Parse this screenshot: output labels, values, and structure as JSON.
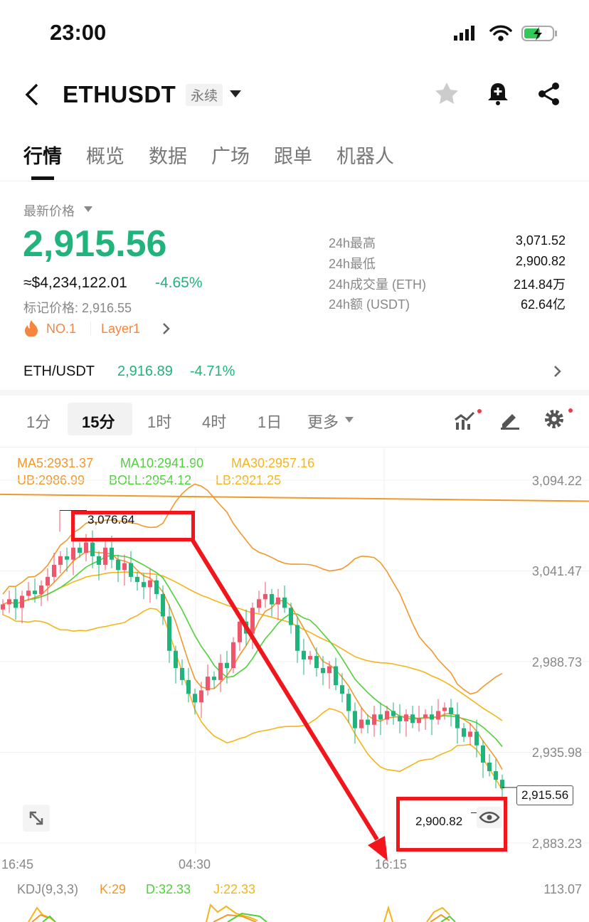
{
  "status_bar": {
    "time": "23:00"
  },
  "header": {
    "title": "ETHUSDT",
    "tag": "永续"
  },
  "tabs": [
    {
      "label": "行情",
      "active": true
    },
    {
      "label": "概览"
    },
    {
      "label": "数据"
    },
    {
      "label": "广场"
    },
    {
      "label": "跟单"
    },
    {
      "label": "机器人"
    }
  ],
  "price": {
    "label": "最新价格",
    "last": "2,915.56",
    "usd": "≈$4,234,122.01",
    "change": "-4.65%",
    "mark": "标记价格: 2,916.55",
    "rank": "NO.1",
    "sector": "Layer1"
  },
  "stats": [
    {
      "label": "24h最高",
      "value": "3,071.52"
    },
    {
      "label": "24h最低",
      "value": "2,900.82"
    },
    {
      "label": "24h成交量 (ETH)",
      "value": "214.84万"
    },
    {
      "label": "24h额 (USDT)",
      "value": "62.64亿"
    }
  ],
  "spot": {
    "pair": "ETH/USDT",
    "price": "2,916.89",
    "change": "-4.71%"
  },
  "intervals": [
    {
      "label": "1分"
    },
    {
      "label": "15分",
      "active": true
    },
    {
      "label": "1时"
    },
    {
      "label": "4时"
    },
    {
      "label": "1日"
    },
    {
      "label": "更多"
    }
  ],
  "indicators": {
    "ma5": "MA5:2931.37",
    "ma10": "MA10:2941.90",
    "ma30": "MA30:2957.16",
    "ub": "UB:2986.99",
    "boll": "BOLL:2954.12",
    "lb": "LB:2921.25"
  },
  "chart_data": {
    "type": "candlestick",
    "y_ticks": [
      "3,094.22",
      "3,041.47",
      "2,988.73",
      "2,935.98",
      "2,883.23"
    ],
    "x_ticks": [
      "16:45",
      "04:30",
      "16:15"
    ],
    "high_label": "3,076.64",
    "low_label": "2,900.82",
    "current_label": "2,915.56",
    "closes": [
      3022,
      3025,
      3020,
      3027,
      3030,
      3028,
      3033,
      3038,
      3045,
      3050,
      3048,
      3055,
      3052,
      3058,
      3050,
      3045,
      3055,
      3048,
      3042,
      3046,
      3038,
      3035,
      3032,
      3036,
      3028,
      3015,
      2995,
      2985,
      2978,
      2970,
      2965,
      2972,
      2980,
      2978,
      2988,
      2985,
      3000,
      3012,
      3005,
      3020,
      3025,
      3028,
      3022,
      3026,
      3020,
      3010,
      2995,
      2990,
      2992,
      2985,
      2982,
      2986,
      2975,
      2970,
      2960,
      2950,
      2955,
      2952,
      2958,
      2955,
      2960,
      2957,
      2954,
      2958,
      2953,
      2956,
      2958,
      2955,
      2960,
      2962,
      2958,
      2950,
      2945,
      2948,
      2940,
      2930,
      2925,
      2920,
      2915
    ],
    "colors": {
      "up": "#f0566b",
      "down": "#21b37c",
      "ma5": "#f0982c",
      "ma10": "#4fd13a",
      "ma30": "#f5b418"
    }
  },
  "kdj": {
    "label": "KDJ(9,3,3)",
    "k": "K:29",
    "d": "D:32.33",
    "j": "J:22.33",
    "axis": "113.07"
  }
}
